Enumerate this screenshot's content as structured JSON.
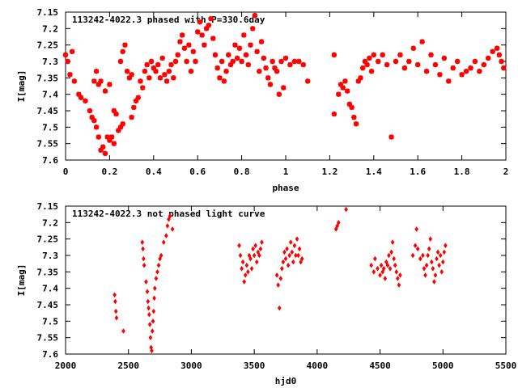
{
  "chart_data": [
    {
      "type": "scatter",
      "title": "113242-4022.3 phased with P=330.6day",
      "xlabel": "phase",
      "ylabel": "I[mag]",
      "xlim": [
        0,
        2
      ],
      "ylim": [
        7.6,
        7.15
      ],
      "y_inverted": true,
      "grid": false,
      "marker": "asterisk",
      "color": "#ff0000",
      "x_ticks": [
        "0",
        "0.2",
        "0.4",
        "0.6",
        "0.8",
        "1",
        "1.2",
        "1.4",
        "1.6",
        "1.8",
        "2"
      ],
      "y_ticks": [
        "7.15",
        "7.2",
        "7.25",
        "7.3",
        "7.35",
        "7.4",
        "7.45",
        "7.5",
        "7.55",
        "7.6"
      ],
      "points": [
        [
          0.0,
          7.28
        ],
        [
          0.01,
          7.3
        ],
        [
          0.02,
          7.34
        ],
        [
          0.03,
          7.27
        ],
        [
          0.04,
          7.36
        ],
        [
          0.06,
          7.4
        ],
        [
          0.07,
          7.41
        ],
        [
          0.09,
          7.42
        ],
        [
          0.11,
          7.45
        ],
        [
          0.12,
          7.47
        ],
        [
          0.13,
          7.48
        ],
        [
          0.14,
          7.5
        ],
        [
          0.15,
          7.53
        ],
        [
          0.16,
          7.57
        ],
        [
          0.17,
          7.56
        ],
        [
          0.18,
          7.58
        ],
        [
          0.19,
          7.53
        ],
        [
          0.2,
          7.54
        ],
        [
          0.21,
          7.53
        ],
        [
          0.22,
          7.55
        ],
        [
          0.13,
          7.36
        ],
        [
          0.14,
          7.33
        ],
        [
          0.15,
          7.37
        ],
        [
          0.16,
          7.36
        ],
        [
          0.18,
          7.39
        ],
        [
          0.2,
          7.37
        ],
        [
          0.22,
          7.45
        ],
        [
          0.23,
          7.46
        ],
        [
          0.24,
          7.51
        ],
        [
          0.25,
          7.5
        ],
        [
          0.26,
          7.49
        ],
        [
          0.25,
          7.3
        ],
        [
          0.26,
          7.27
        ],
        [
          0.27,
          7.25
        ],
        [
          0.28,
          7.33
        ],
        [
          0.29,
          7.35
        ],
        [
          0.3,
          7.34
        ],
        [
          0.3,
          7.47
        ],
        [
          0.31,
          7.44
        ],
        [
          0.32,
          7.42
        ],
        [
          0.33,
          7.41
        ],
        [
          0.34,
          7.36
        ],
        [
          0.35,
          7.38
        ],
        [
          0.36,
          7.33
        ],
        [
          0.37,
          7.31
        ],
        [
          0.38,
          7.35
        ],
        [
          0.39,
          7.3
        ],
        [
          0.4,
          7.32
        ],
        [
          0.41,
          7.33
        ],
        [
          0.42,
          7.31
        ],
        [
          0.43,
          7.35
        ],
        [
          0.44,
          7.29
        ],
        [
          0.45,
          7.34
        ],
        [
          0.46,
          7.36
        ],
        [
          0.47,
          7.33
        ],
        [
          0.48,
          7.31
        ],
        [
          0.49,
          7.35
        ],
        [
          0.5,
          7.3
        ],
        [
          0.51,
          7.28
        ],
        [
          0.52,
          7.24
        ],
        [
          0.53,
          7.22
        ],
        [
          0.54,
          7.26
        ],
        [
          0.55,
          7.3
        ],
        [
          0.56,
          7.25
        ],
        [
          0.57,
          7.33
        ],
        [
          0.58,
          7.27
        ],
        [
          0.59,
          7.3
        ],
        [
          0.6,
          7.21
        ],
        [
          0.61,
          7.18
        ],
        [
          0.62,
          7.22
        ],
        [
          0.63,
          7.25
        ],
        [
          0.64,
          7.2
        ],
        [
          0.65,
          7.19
        ],
        [
          0.66,
          7.17
        ],
        [
          0.67,
          7.23
        ],
        [
          0.68,
          7.28
        ],
        [
          0.69,
          7.32
        ],
        [
          0.7,
          7.35
        ],
        [
          0.71,
          7.3
        ],
        [
          0.72,
          7.36
        ],
        [
          0.73,
          7.33
        ],
        [
          0.74,
          7.28
        ],
        [
          0.75,
          7.31
        ],
        [
          0.76,
          7.3
        ],
        [
          0.77,
          7.25
        ],
        [
          0.78,
          7.29
        ],
        [
          0.79,
          7.26
        ],
        [
          0.8,
          7.3
        ],
        [
          0.81,
          7.22
        ],
        [
          0.82,
          7.28
        ],
        [
          0.83,
          7.31
        ],
        [
          0.84,
          7.25
        ],
        [
          0.85,
          7.2
        ],
        [
          0.86,
          7.16
        ],
        [
          0.87,
          7.27
        ],
        [
          0.88,
          7.33
        ],
        [
          0.89,
          7.24
        ],
        [
          0.9,
          7.29
        ],
        [
          0.91,
          7.32
        ],
        [
          0.92,
          7.35
        ],
        [
          0.93,
          7.37
        ],
        [
          0.94,
          7.3
        ],
        [
          0.95,
          7.32
        ],
        [
          0.96,
          7.33
        ],
        [
          0.97,
          7.4
        ],
        [
          0.98,
          7.3
        ],
        [
          0.99,
          7.38
        ],
        [
          1.0,
          7.29
        ],
        [
          1.02,
          7.31
        ],
        [
          1.04,
          7.3
        ],
        [
          1.06,
          7.3
        ],
        [
          1.08,
          7.31
        ],
        [
          1.1,
          7.36
        ],
        [
          1.22,
          7.28
        ],
        [
          1.22,
          7.46
        ],
        [
          1.24,
          7.4
        ],
        [
          1.25,
          7.37
        ],
        [
          1.26,
          7.38
        ],
        [
          1.27,
          7.36
        ],
        [
          1.28,
          7.39
        ],
        [
          1.29,
          7.43
        ],
        [
          1.3,
          7.44
        ],
        [
          1.31,
          7.47
        ],
        [
          1.32,
          7.49
        ],
        [
          1.33,
          7.36
        ],
        [
          1.34,
          7.35
        ],
        [
          1.35,
          7.32
        ],
        [
          1.36,
          7.3
        ],
        [
          1.37,
          7.31
        ],
        [
          1.38,
          7.29
        ],
        [
          1.39,
          7.33
        ],
        [
          1.4,
          7.28
        ],
        [
          1.42,
          7.3
        ],
        [
          1.44,
          7.28
        ],
        [
          1.46,
          7.31
        ],
        [
          1.48,
          7.53
        ],
        [
          1.5,
          7.3
        ],
        [
          1.52,
          7.28
        ],
        [
          1.54,
          7.32
        ],
        [
          1.56,
          7.3
        ],
        [
          1.58,
          7.26
        ],
        [
          1.6,
          7.31
        ],
        [
          1.62,
          7.24
        ],
        [
          1.64,
          7.33
        ],
        [
          1.66,
          7.28
        ],
        [
          1.68,
          7.31
        ],
        [
          1.7,
          7.34
        ],
        [
          1.72,
          7.29
        ],
        [
          1.74,
          7.36
        ],
        [
          1.76,
          7.32
        ],
        [
          1.78,
          7.3
        ],
        [
          1.8,
          7.34
        ],
        [
          1.82,
          7.33
        ],
        [
          1.84,
          7.32
        ],
        [
          1.86,
          7.3
        ],
        [
          1.88,
          7.33
        ],
        [
          1.9,
          7.31
        ],
        [
          1.92,
          7.29
        ],
        [
          1.94,
          7.27
        ],
        [
          1.96,
          7.26
        ],
        [
          1.97,
          7.28
        ],
        [
          1.98,
          7.3
        ],
        [
          1.99,
          7.32
        ]
      ]
    },
    {
      "type": "scatter",
      "title": "113242-4022.3 not phased light curve",
      "xlabel": "hjd0",
      "ylabel": "I[mag]",
      "xlim": [
        2000,
        5500
      ],
      "ylim": [
        7.6,
        7.15
      ],
      "y_inverted": true,
      "grid": false,
      "marker": "diamond",
      "color": "#ff0000",
      "x_ticks": [
        "2000",
        "2500",
        "3000",
        "3500",
        "4000",
        "4500",
        "5000",
        "5500"
      ],
      "y_ticks": [
        "7.15",
        "7.2",
        "7.25",
        "7.3",
        "7.35",
        "7.4",
        "7.45",
        "7.5",
        "7.55",
        "7.6"
      ],
      "points": [
        [
          2390,
          7.42
        ],
        [
          2395,
          7.44
        ],
        [
          2400,
          7.47
        ],
        [
          2405,
          7.49
        ],
        [
          2460,
          7.53
        ],
        [
          2610,
          7.26
        ],
        [
          2615,
          7.28
        ],
        [
          2620,
          7.31
        ],
        [
          2625,
          7.33
        ],
        [
          2640,
          7.38
        ],
        [
          2650,
          7.41
        ],
        [
          2655,
          7.44
        ],
        [
          2660,
          7.46
        ],
        [
          2665,
          7.48
        ],
        [
          2670,
          7.51
        ],
        [
          2675,
          7.55
        ],
        [
          2680,
          7.58
        ],
        [
          2685,
          7.59
        ],
        [
          2690,
          7.53
        ],
        [
          2695,
          7.5
        ],
        [
          2700,
          7.47
        ],
        [
          2705,
          7.43
        ],
        [
          2710,
          7.4
        ],
        [
          2720,
          7.37
        ],
        [
          2730,
          7.35
        ],
        [
          2740,
          7.33
        ],
        [
          2750,
          7.31
        ],
        [
          2760,
          7.3
        ],
        [
          2780,
          7.26
        ],
        [
          2800,
          7.24
        ],
        [
          2810,
          7.21
        ],
        [
          2820,
          7.19
        ],
        [
          2830,
          7.18
        ],
        [
          2850,
          7.22
        ],
        [
          3380,
          7.27
        ],
        [
          3390,
          7.3
        ],
        [
          3400,
          7.34
        ],
        [
          3410,
          7.32
        ],
        [
          3420,
          7.38
        ],
        [
          3430,
          7.36
        ],
        [
          3440,
          7.33
        ],
        [
          3450,
          7.35
        ],
        [
          3460,
          7.3
        ],
        [
          3470,
          7.31
        ],
        [
          3480,
          7.34
        ],
        [
          3490,
          7.28
        ],
        [
          3500,
          7.3
        ],
        [
          3510,
          7.27
        ],
        [
          3520,
          7.32
        ],
        [
          3530,
          7.29
        ],
        [
          3540,
          7.3
        ],
        [
          3550,
          7.28
        ],
        [
          3560,
          7.26
        ],
        [
          3680,
          7.36
        ],
        [
          3690,
          7.39
        ],
        [
          3700,
          7.46
        ],
        [
          3710,
          7.37
        ],
        [
          3720,
          7.34
        ],
        [
          3730,
          7.32
        ],
        [
          3740,
          7.29
        ],
        [
          3750,
          7.31
        ],
        [
          3760,
          7.28
        ],
        [
          3770,
          7.33
        ],
        [
          3780,
          7.3
        ],
        [
          3790,
          7.26
        ],
        [
          3800,
          7.29
        ],
        [
          3810,
          7.32
        ],
        [
          3820,
          7.27
        ],
        [
          3830,
          7.3
        ],
        [
          3840,
          7.25
        ],
        [
          3850,
          7.3
        ],
        [
          3860,
          7.28
        ],
        [
          3870,
          7.32
        ],
        [
          3880,
          7.31
        ],
        [
          4150,
          7.22
        ],
        [
          4160,
          7.21
        ],
        [
          4170,
          7.2
        ],
        [
          4230,
          7.16
        ],
        [
          4430,
          7.33
        ],
        [
          4450,
          7.35
        ],
        [
          4460,
          7.31
        ],
        [
          4480,
          7.34
        ],
        [
          4500,
          7.36
        ],
        [
          4510,
          7.33
        ],
        [
          4520,
          7.35
        ],
        [
          4530,
          7.34
        ],
        [
          4540,
          7.37
        ],
        [
          4550,
          7.32
        ],
        [
          4560,
          7.33
        ],
        [
          4570,
          7.3
        ],
        [
          4580,
          7.34
        ],
        [
          4590,
          7.29
        ],
        [
          4600,
          7.26
        ],
        [
          4610,
          7.31
        ],
        [
          4620,
          7.33
        ],
        [
          4630,
          7.35
        ],
        [
          4640,
          7.37
        ],
        [
          4650,
          7.39
        ],
        [
          4660,
          7.36
        ],
        [
          4760,
          7.3
        ],
        [
          4780,
          7.27
        ],
        [
          4790,
          7.22
        ],
        [
          4800,
          7.28
        ],
        [
          4820,
          7.31
        ],
        [
          4840,
          7.3
        ],
        [
          4850,
          7.34
        ],
        [
          4860,
          7.36
        ],
        [
          4870,
          7.33
        ],
        [
          4880,
          7.3
        ],
        [
          4890,
          7.28
        ],
        [
          4900,
          7.25
        ],
        [
          4910,
          7.32
        ],
        [
          4920,
          7.34
        ],
        [
          4930,
          7.38
        ],
        [
          4940,
          7.36
        ],
        [
          4950,
          7.31
        ],
        [
          4960,
          7.29
        ],
        [
          4970,
          7.33
        ],
        [
          4980,
          7.3
        ],
        [
          4990,
          7.35
        ],
        [
          5000,
          7.32
        ],
        [
          5010,
          7.29
        ],
        [
          5020,
          7.27
        ]
      ]
    }
  ]
}
